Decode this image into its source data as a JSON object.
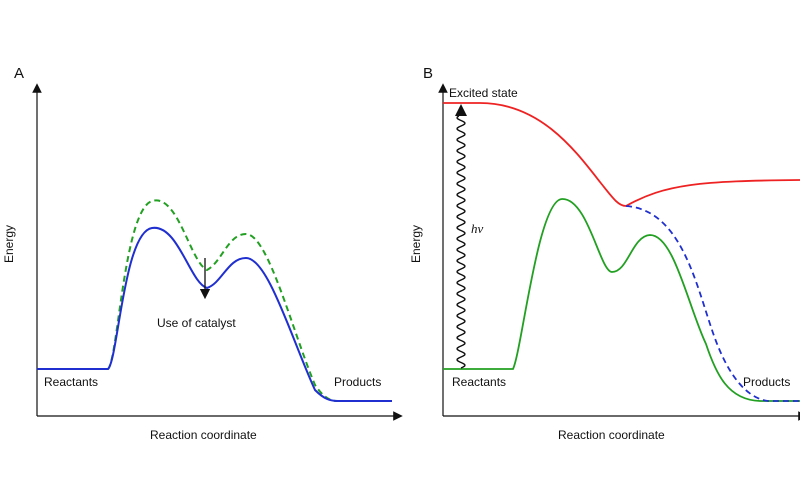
{
  "panel_a": {
    "letter": "A",
    "y_axis_label": "Energy",
    "x_axis_label": "Reaction coordinate",
    "reactants_label": "Reactants",
    "products_label": "Products",
    "annotation": "Use of catalyst",
    "curve_colors": {
      "uncatalyzed": "#22a022",
      "catalyzed": "#1f2fd0"
    }
  },
  "panel_b": {
    "letter": "B",
    "y_axis_label": "Energy",
    "x_axis_label": "Reaction coordinate",
    "reactants_label": "Reactants",
    "products_label": "Products",
    "excited_state_label": "Excited state",
    "photon_label": "hν",
    "curve_colors": {
      "excited": "#ee2222",
      "ground": "#22a022",
      "dashed": "#1f2fd0"
    }
  }
}
